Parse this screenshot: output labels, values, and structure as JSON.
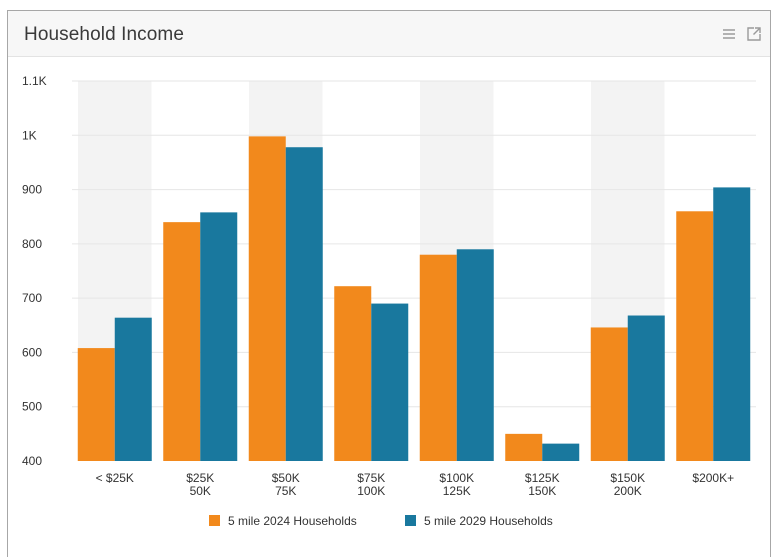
{
  "widget": {
    "title": "Household Income",
    "menu_icon": "list-menu-icon",
    "popout_icon": "external-link-icon"
  },
  "colors": {
    "series_2024": "#f2891c",
    "series_2029": "#19789e",
    "band": "#f3f3f3",
    "grid": "#e6e6e6",
    "axis_text": "#333333"
  },
  "chart_data": {
    "type": "bar",
    "title": "Household Income",
    "xlabel": "",
    "ylabel": "",
    "ylim": [
      400,
      1100
    ],
    "yticks": [
      400,
      500,
      600,
      700,
      800,
      900,
      1000,
      1100
    ],
    "ytick_labels": [
      "400",
      "500",
      "600",
      "700",
      "800",
      "900",
      "1K",
      "1.1K"
    ],
    "categories": [
      [
        "< $25K"
      ],
      [
        "$25K",
        "50K"
      ],
      [
        "$50K",
        "75K"
      ],
      [
        "$75K",
        "100K"
      ],
      [
        "$100K",
        "125K"
      ],
      [
        "$125K",
        "150K"
      ],
      [
        "$150K",
        "200K"
      ],
      [
        "$200K+"
      ]
    ],
    "series": [
      {
        "name": "5 mile 2024 Households",
        "values": [
          608,
          840,
          998,
          722,
          780,
          450,
          646,
          860
        ]
      },
      {
        "name": "5 mile 2029 Households",
        "values": [
          664,
          858,
          978,
          690,
          790,
          432,
          668,
          904
        ]
      }
    ],
    "grid": true,
    "alternating_bands": true,
    "legend_position": "bottom-center"
  }
}
